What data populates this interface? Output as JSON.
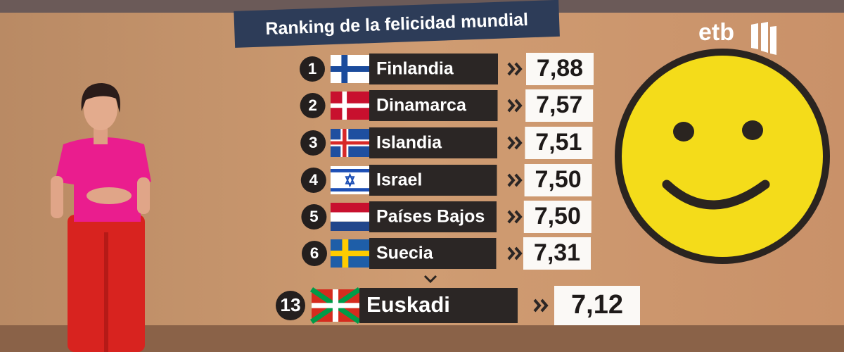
{
  "header": {
    "title": "Ranking de la felicidad mundial",
    "logo": "etb"
  },
  "table": {
    "rows": [
      {
        "rank": 1,
        "country": "Finlandia",
        "score": "7,88"
      },
      {
        "rank": 2,
        "country": "Dinamarca",
        "score": "7,57"
      },
      {
        "rank": 3,
        "country": "Islandia",
        "score": "7,51"
      },
      {
        "rank": 4,
        "country": "Israel",
        "score": "7,50"
      },
      {
        "rank": 5,
        "country": "Países Bajos",
        "score": "7,50"
      },
      {
        "rank": 6,
        "country": "Suecia",
        "score": "7,31"
      },
      {
        "rank": 13,
        "country": "Euskadi",
        "score": "7,12"
      }
    ]
  }
}
